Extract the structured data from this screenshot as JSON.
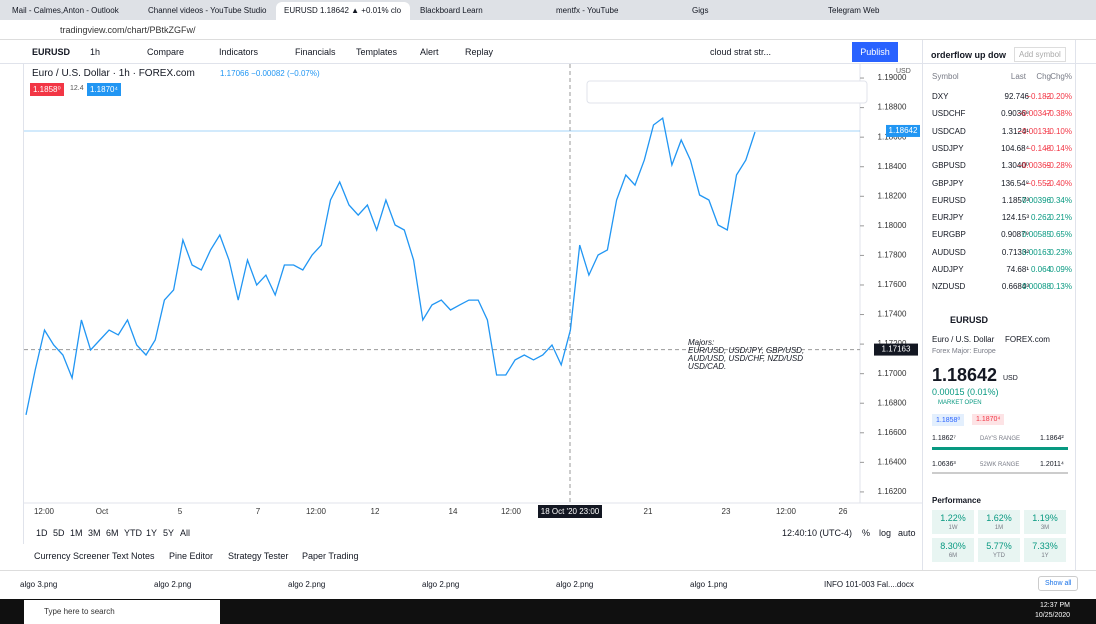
{
  "browser": {
    "tabs": [
      "Mail - Calmes,Anton - Outlook",
      "Channel videos - YouTube Studio",
      "EURUSD 1.18642 ▲ +0.01% clo",
      "Blackboard Learn",
      "mentfx - YouTube",
      "Gigs",
      "Telegram Web"
    ],
    "url": "tradingview.com/chart/PBtkZGFw/"
  },
  "toolbar": {
    "symbol": "EURUSD",
    "interval": "1h",
    "items": [
      "Compare",
      "Indicators",
      "Financials",
      "Templates",
      "Alert",
      "Replay"
    ],
    "layout": "cloud strat str...",
    "publish": "Publish"
  },
  "chart": {
    "title": "Euro / U.S. Dollar · 1h · FOREX.com",
    "quote": "1.17066 −0.00082 (−0.07%)",
    "bid": "1.1858⁰",
    "spread": "12.4",
    "ask": "1.1870⁴",
    "currency": "USD",
    "ylim": [
      1.16125,
      1.19095
    ],
    "yticks": [
      {
        "value": 1.19,
        "label": "1.19000"
      },
      {
        "value": 1.188,
        "label": "1.18800"
      },
      {
        "value": 1.186,
        "label": "1.18600"
      },
      {
        "value": 1.184,
        "label": "1.18400"
      },
      {
        "value": 1.182,
        "label": "1.18200"
      },
      {
        "value": 1.18,
        "label": "1.18000"
      },
      {
        "value": 1.178,
        "label": "1.17800"
      },
      {
        "value": 1.176,
        "label": "1.17600"
      },
      {
        "value": 1.174,
        "label": "1.17400"
      },
      {
        "value": 1.172,
        "label": "1.17200"
      },
      {
        "value": 1.17,
        "label": "1.17000"
      },
      {
        "value": 1.168,
        "label": "1.16800"
      },
      {
        "value": 1.166,
        "label": "1.16600"
      },
      {
        "value": 1.164,
        "label": "1.16400"
      },
      {
        "value": 1.162,
        "label": "1.16200"
      }
    ],
    "last_price": {
      "value": 1.18642,
      "label": "1.18642"
    },
    "crosshair_price": {
      "value": 1.17163,
      "label": "1.17163"
    },
    "xlabels": [
      "12:00",
      "Oct",
      "5",
      "7",
      "12:00",
      "12",
      "14",
      "12:00",
      "21",
      "23",
      "12:00",
      "26"
    ],
    "crosshair_time": "18 Oct '20  23:00",
    "note": [
      "Majors:",
      "EUR/USD, USD/JPY, GBP/USD,",
      "AUD/USD, USD/CHF, NZD/USD",
      "USD/CAD."
    ],
    "prices": [
      1.16721,
      1.17025,
      1.17295,
      1.17194,
      1.17126,
      1.16971,
      1.17363,
      1.1716,
      1.17228,
      1.17295,
      1.17262,
      1.17363,
      1.17194,
      1.17126,
      1.17228,
      1.17498,
      1.17566,
      1.17904,
      1.17735,
      1.17701,
      1.17837,
      1.17938,
      1.17769,
      1.17498,
      1.17769,
      1.176,
      1.17667,
      1.17532,
      1.17735,
      1.17735,
      1.17701,
      1.17803,
      1.1787,
      1.18175,
      1.18297,
      1.18141,
      1.18073,
      1.18141,
      1.17972,
      1.18175,
      1.18006,
      1.17972,
      1.17769,
      1.17363,
      1.17465,
      1.17498,
      1.17431,
      1.17465,
      1.17498,
      1.17498,
      1.17363,
      1.16991,
      1.16991,
      1.17093,
      1.17126,
      1.17093,
      1.17126,
      1.17194,
      1.17059,
      1.17295,
      1.1787,
      1.17667,
      1.17803,
      1.17837,
      1.18175,
      1.18344,
      1.18276,
      1.18445,
      1.18682,
      1.18729,
      1.18412,
      1.18581,
      1.18445,
      1.18209,
      1.18175,
      1.18006,
      1.17972,
      1.18344,
      1.18445,
      1.18635
    ],
    "color": "#2196f3"
  },
  "timebar": {
    "ranges": [
      "1D",
      "5D",
      "1M",
      "3M",
      "6M",
      "YTD",
      "1Y",
      "5Y",
      "All"
    ],
    "clock": "12:40:10 (UTC-4)",
    "opts": [
      "%",
      "log",
      "auto"
    ]
  },
  "panel_tabs": [
    "Currency Screener",
    "Text Notes",
    "Pine Editor",
    "Strategy Tester",
    "Paper Trading"
  ],
  "watchlist": {
    "title": "orderflow up dow",
    "add": "Add symbol",
    "headers": [
      "Symbol",
      "Last",
      "Chg",
      "Chg%"
    ],
    "rows": [
      [
        "DXY",
        "92.746",
        "−0.182",
        "−0.20%"
      ],
      [
        "USDCHF",
        "0.9036⁸",
        "−0.00347",
        "−0.38%"
      ],
      [
        "USDCAD",
        "1.3124¹",
        "−0.00131",
        "−0.10%"
      ],
      [
        "USDJPY",
        "104.68⁴",
        "−0.148",
        "−0.14%"
      ],
      [
        "GBPUSD",
        "1.3040⁰",
        "−0.00369",
        "−0.28%"
      ],
      [
        "GBPJPY",
        "136.54⁸",
        "−0.552",
        "−0.40%"
      ],
      [
        "EURUSD",
        "1.1857³",
        "0.00396",
        "0.34%"
      ],
      [
        "EURJPY",
        "124.15³",
        "0.262",
        "0.21%"
      ],
      [
        "EURGBP",
        "0.9087⁹",
        "0.00585",
        "0.65%"
      ],
      [
        "AUDUSD",
        "0.7133²",
        "0.00163",
        "0.23%"
      ],
      [
        "AUDJPY",
        "74.68¹",
        "0.064",
        "0.09%"
      ],
      [
        "NZDUSD",
        "0.6684³",
        "0.00088",
        "0.13%"
      ]
    ]
  },
  "details": {
    "symbol": "EURUSD",
    "name": "Euro / U.S. Dollar",
    "exchange": "FOREX.com",
    "category": "Forex Major: Europe",
    "price": "1.18642",
    "currency": "USD",
    "change": "0.00015 (0.01%)",
    "status": "MARKET OPEN",
    "bid": "1.1858⁰",
    "ask": "1.1870⁴",
    "day_low": "1.1862⁷",
    "day_label": "DAY'S RANGE",
    "day_high": "1.1864²",
    "wk_low": "1.0636³",
    "wk_label": "52WK RANGE",
    "wk_high": "1.2011⁴",
    "performance": "Performance",
    "perf": [
      [
        "1.22%",
        "1W"
      ],
      [
        "1.62%",
        "1M"
      ],
      [
        "1.19%",
        "3M"
      ],
      [
        "8.30%",
        "6M"
      ],
      [
        "5.77%",
        "YTD"
      ],
      [
        "7.33%",
        "1Y"
      ]
    ]
  },
  "downloads": {
    "files": [
      "algo 3.png",
      "algo 2.png",
      "algo 2.png",
      "algo 2.png",
      "algo 2.png",
      "algo 1.png",
      "INFO 101-003 Fal....docx"
    ],
    "show_all": "Show all"
  },
  "taskbar": {
    "search": "Type here to search",
    "time": "12:37 PM",
    "date": "10/25/2020"
  }
}
